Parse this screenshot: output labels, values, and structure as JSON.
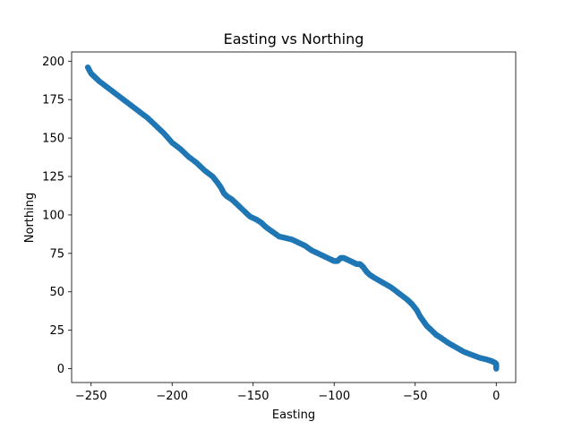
{
  "chart_data": {
    "type": "scatter",
    "title": "Easting vs Northing",
    "xlabel": "Easting",
    "ylabel": "Northing",
    "xlim": [
      -262,
      12
    ],
    "ylim": [
      -9,
      206
    ],
    "x_ticks": [
      -250,
      -200,
      -150,
      -100,
      -50,
      0
    ],
    "x_tick_labels": [
      "−250",
      "−200",
      "−150",
      "−100",
      "−50",
      "0"
    ],
    "y_ticks": [
      0,
      25,
      50,
      75,
      100,
      125,
      150,
      175,
      200
    ],
    "y_tick_labels": [
      "0",
      "25",
      "50",
      "75",
      "100",
      "125",
      "150",
      "175",
      "200"
    ],
    "grid": false,
    "legend": "none",
    "color": "#1f77b4",
    "series": [
      {
        "x": [
          -252,
          -250,
          -248,
          -245,
          -240,
          -235,
          -230,
          -225,
          -220,
          -215,
          -210,
          -205,
          -200,
          -195,
          -190,
          -185,
          -180,
          -175,
          -172,
          -170,
          -168,
          -166,
          -163,
          -160,
          -156,
          -152,
          -148,
          -145,
          -142,
          -138,
          -134,
          -130,
          -126,
          -122,
          -118,
          -114,
          -110,
          -106,
          -102,
          -100,
          -98,
          -96,
          -94,
          -92,
          -90,
          -88,
          -86,
          -84,
          -82,
          -80,
          -78,
          -75,
          -70,
          -65,
          -60,
          -55,
          -52,
          -49,
          -47,
          -45,
          -43,
          -40,
          -37,
          -34,
          -30,
          -25,
          -20,
          -15,
          -10,
          -6,
          -3,
          -1,
          0,
          0
        ],
        "y": [
          196,
          192,
          190,
          187,
          183,
          179,
          175,
          171,
          167,
          163,
          158,
          153,
          147,
          143,
          138,
          134,
          129,
          125,
          121,
          118,
          114,
          112,
          110,
          107,
          103,
          99,
          97,
          95,
          92,
          89,
          86,
          85,
          84,
          82,
          80,
          77,
          75,
          73,
          71,
          70,
          70,
          72,
          72,
          71,
          70,
          69,
          68,
          68,
          66,
          63,
          61,
          59,
          56,
          53,
          49,
          45,
          42,
          38,
          34,
          31,
          28,
          25,
          22,
          20,
          17,
          14,
          11,
          9,
          7,
          6,
          5,
          4,
          3,
          0
        ]
      }
    ]
  }
}
